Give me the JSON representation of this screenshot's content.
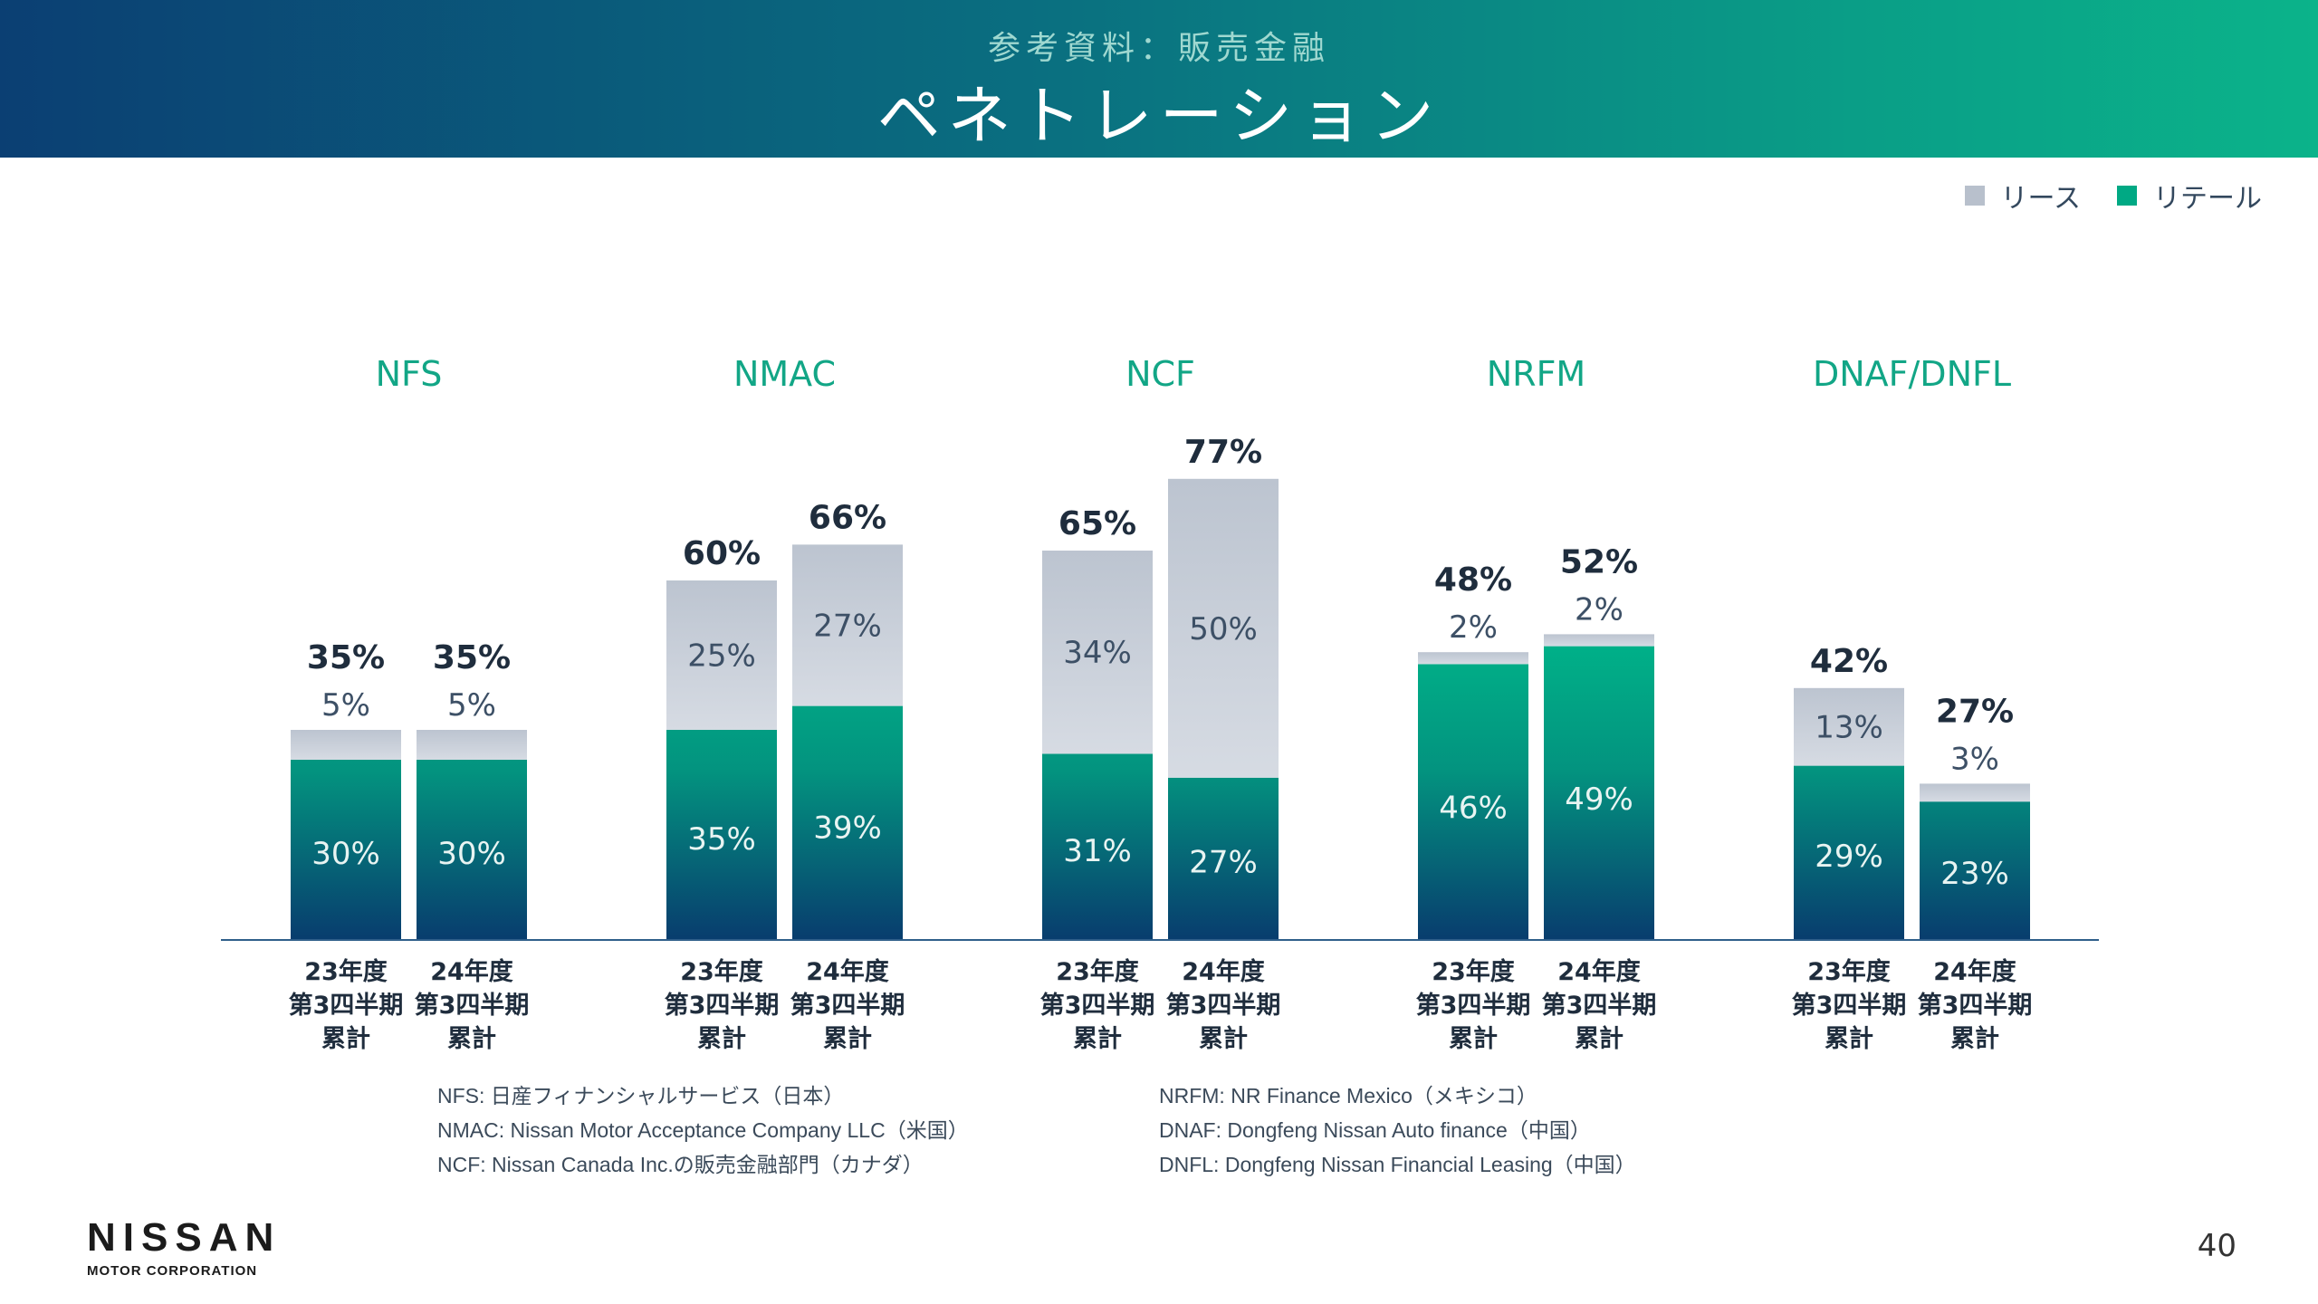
{
  "header": {
    "subtitle": "参考資料：販売金融",
    "title": "ペネトレーション"
  },
  "legend": [
    {
      "label": "リース",
      "color": "#b8c0cc"
    },
    {
      "label": "リテール",
      "color": "#00a984"
    }
  ],
  "chart_data": {
    "type": "bar",
    "stacked": true,
    "groups": [
      "NFS",
      "NMAC",
      "NCF",
      "NRFM",
      "DNAF/DNFL"
    ],
    "categories": [
      "23年度\n第3四半期\n累計",
      "24年度\n第3四半期\n累計"
    ],
    "series": [
      {
        "name": "リテール",
        "values": [
          [
            30,
            30
          ],
          [
            35,
            39
          ],
          [
            31,
            27
          ],
          [
            46,
            49
          ],
          [
            29,
            23
          ]
        ]
      },
      {
        "name": "リース",
        "values": [
          [
            5,
            5
          ],
          [
            25,
            27
          ],
          [
            34,
            50
          ],
          [
            2,
            2
          ],
          [
            13,
            3
          ]
        ]
      }
    ],
    "totals": [
      [
        35,
        35
      ],
      [
        60,
        66
      ],
      [
        65,
        77
      ],
      [
        48,
        52
      ],
      [
        42,
        27
      ]
    ],
    "unit": "%",
    "ylim": [
      0,
      80
    ],
    "grid": false,
    "legend_position": "top-right"
  },
  "footnotes_left": [
    "NFS: 日産フィナンシャルサービス（日本）",
    "NMAC: Nissan Motor Acceptance Company LLC（米国）",
    "NCF: Nissan Canada Inc.の販売金融部門（カナダ）"
  ],
  "footnotes_right": [
    "NRFM: NR Finance Mexico（メキシコ）",
    "DNAF: Dongfeng Nissan Auto finance（中国）",
    "DNFL: Dongfeng Nissan Financial Leasing（中国）"
  ],
  "logo": {
    "brand": "NISSAN",
    "corp": "MOTOR CORPORATION"
  },
  "page_number": "40",
  "colors": {
    "lease": "#c9d0db",
    "retail_top": "#00b389",
    "retail_bottom": "#083d6e",
    "group_title": "#12a686",
    "axis": "#2f5f8a"
  }
}
